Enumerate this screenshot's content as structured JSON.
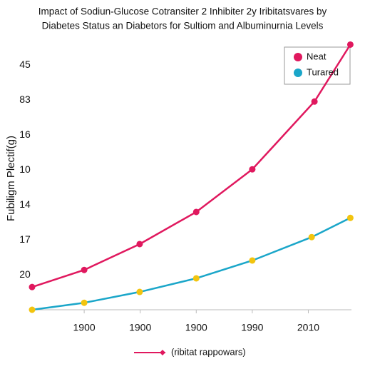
{
  "chart_data": {
    "type": "line",
    "title": [
      "Impact of Sodiun-Glucose Cotransiter 2 Inhibiter 2y Iribitatsvares by",
      "Diabetes Status an Diabetors for Sultiom and Albuminurnia Levels"
    ],
    "y_label": "Fubiligm Plectif(g)",
    "x_label": "(ribitat rappowars)",
    "x_label_color": "#e0185e",
    "xlim": [
      -0.93,
      4.77
    ],
    "xticks": [
      {
        "value": 0,
        "label": "1900"
      },
      {
        "value": 1,
        "label": "1900"
      },
      {
        "value": 2,
        "label": "1900"
      },
      {
        "value": 3,
        "label": "1990"
      },
      {
        "value": 4,
        "label": "2010"
      }
    ],
    "ylim": [
      0,
      7.6
    ],
    "yticks": [
      {
        "value": 1,
        "label": "20"
      },
      {
        "value": 2,
        "label": "17"
      },
      {
        "value": 3,
        "label": "14"
      },
      {
        "value": 4,
        "label": "10"
      },
      {
        "value": 5,
        "label": "16"
      },
      {
        "value": 6,
        "label": "83"
      },
      {
        "value": 7,
        "label": "45"
      }
    ],
    "legend": "upper right",
    "series": [
      {
        "name": "Neat",
        "color": "#e0185e",
        "marker_color": "#e0185e",
        "x": [
          -0.93,
          0,
          0.99,
          2.0,
          3.0,
          4.11,
          4.75
        ],
        "values": [
          0.65,
          1.14,
          1.88,
          2.8,
          4.02,
          5.96,
          7.59
        ]
      },
      {
        "name": "Turared",
        "color": "#1aa6c9",
        "marker_color": "#f2c40f",
        "x": [
          -0.93,
          0,
          0.99,
          2.0,
          3.0,
          4.06,
          4.75
        ],
        "values": [
          0,
          0.2,
          0.51,
          0.9,
          1.41,
          2.08,
          2.63
        ]
      }
    ]
  }
}
